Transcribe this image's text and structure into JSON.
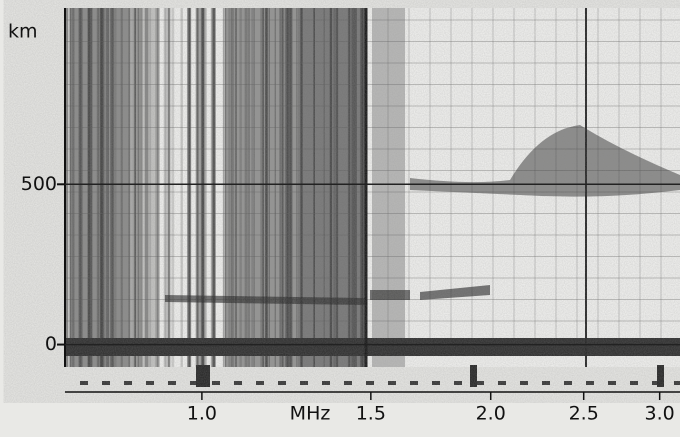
{
  "chart_data": {
    "type": "ionogram",
    "x_label": "MHz",
    "y_label": "km",
    "xscale": "log",
    "xlim": [
      0.72,
      3.15
    ],
    "xticks": [
      {
        "value": 1.0,
        "label": "1.0"
      },
      1.5,
      {
        "value": 2.0,
        "label": "2.0"
      },
      2.5,
      {
        "value": 3.0,
        "label": "3.0"
      }
    ],
    "ylim": [
      -70,
      1050
    ],
    "yticks": [
      0,
      500
    ],
    "grid": true
  }
}
